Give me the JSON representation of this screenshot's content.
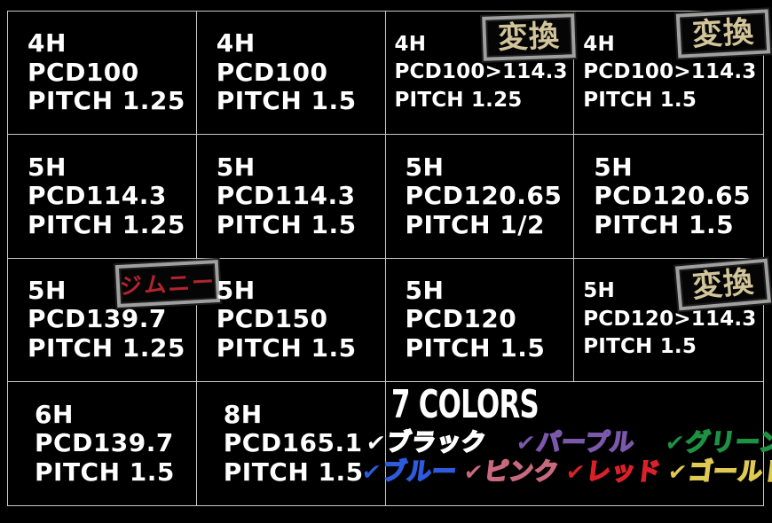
{
  "palette": {
    "background": "#000000",
    "grid_line": "#c8c8c0",
    "spec_text": "#ffffff",
    "badge_border": "#9f9f9f",
    "badge_henkan_text": "#d3c59a",
    "badge_jimny_text": "#b3242f"
  },
  "badge_labels": {
    "henkan": "変換",
    "jimny": "ジムニー"
  },
  "cells": [
    {
      "hole": "4H",
      "pcd": "PCD100",
      "pitch": "PITCH 1.25"
    },
    {
      "hole": "4H",
      "pcd": "PCD100",
      "pitch": "PITCH 1.5"
    },
    {
      "hole": "4H",
      "pcd": "PCD100>114.3",
      "pitch": "PITCH 1.25"
    },
    {
      "hole": "4H",
      "pcd": "PCD100>114.3",
      "pitch": "PITCH 1.5"
    },
    {
      "hole": "5H",
      "pcd": "PCD114.3",
      "pitch": "PITCH 1.25"
    },
    {
      "hole": "5H",
      "pcd": "PCD114.3",
      "pitch": "PITCH 1.5"
    },
    {
      "hole": "5H",
      "pcd": "PCD120.65",
      "pitch": "PITCH 1/2"
    },
    {
      "hole": "5H",
      "pcd": "PCD120.65",
      "pitch": "PITCH 1.5"
    },
    {
      "hole": "5H",
      "pcd": "PCD139.7",
      "pitch": "PITCH 1.25"
    },
    {
      "hole": "5H",
      "pcd": "PCD150",
      "pitch": "PITCH 1.5"
    },
    {
      "hole": "5H",
      "pcd": "PCD120",
      "pitch": "PITCH 1.5"
    },
    {
      "hole": "5H",
      "pcd": "PCD120>114.3",
      "pitch": "PITCH 1.5"
    },
    {
      "hole": "6H",
      "pcd": "PCD139.7",
      "pitch": "PITCH 1.5"
    },
    {
      "hole": "8H",
      "pcd": "PCD165.1",
      "pitch": "PITCH 1.5"
    }
  ],
  "colors_panel": {
    "title": "7 COLORS",
    "check": "✔",
    "row1": [
      {
        "label": "ブラック",
        "color": "#ffffff"
      },
      {
        "label": "パープル",
        "color": "#7b58ab"
      },
      {
        "label": "グリーン",
        "color": "#1d9242"
      }
    ],
    "row2": [
      {
        "label": "ブルー",
        "color": "#2d5bdc"
      },
      {
        "label": "ピンク",
        "color": "#c9697e"
      },
      {
        "label": "レッド",
        "color": "#da2129"
      },
      {
        "label": "ゴールド",
        "color": "#e0ca52"
      }
    ]
  }
}
